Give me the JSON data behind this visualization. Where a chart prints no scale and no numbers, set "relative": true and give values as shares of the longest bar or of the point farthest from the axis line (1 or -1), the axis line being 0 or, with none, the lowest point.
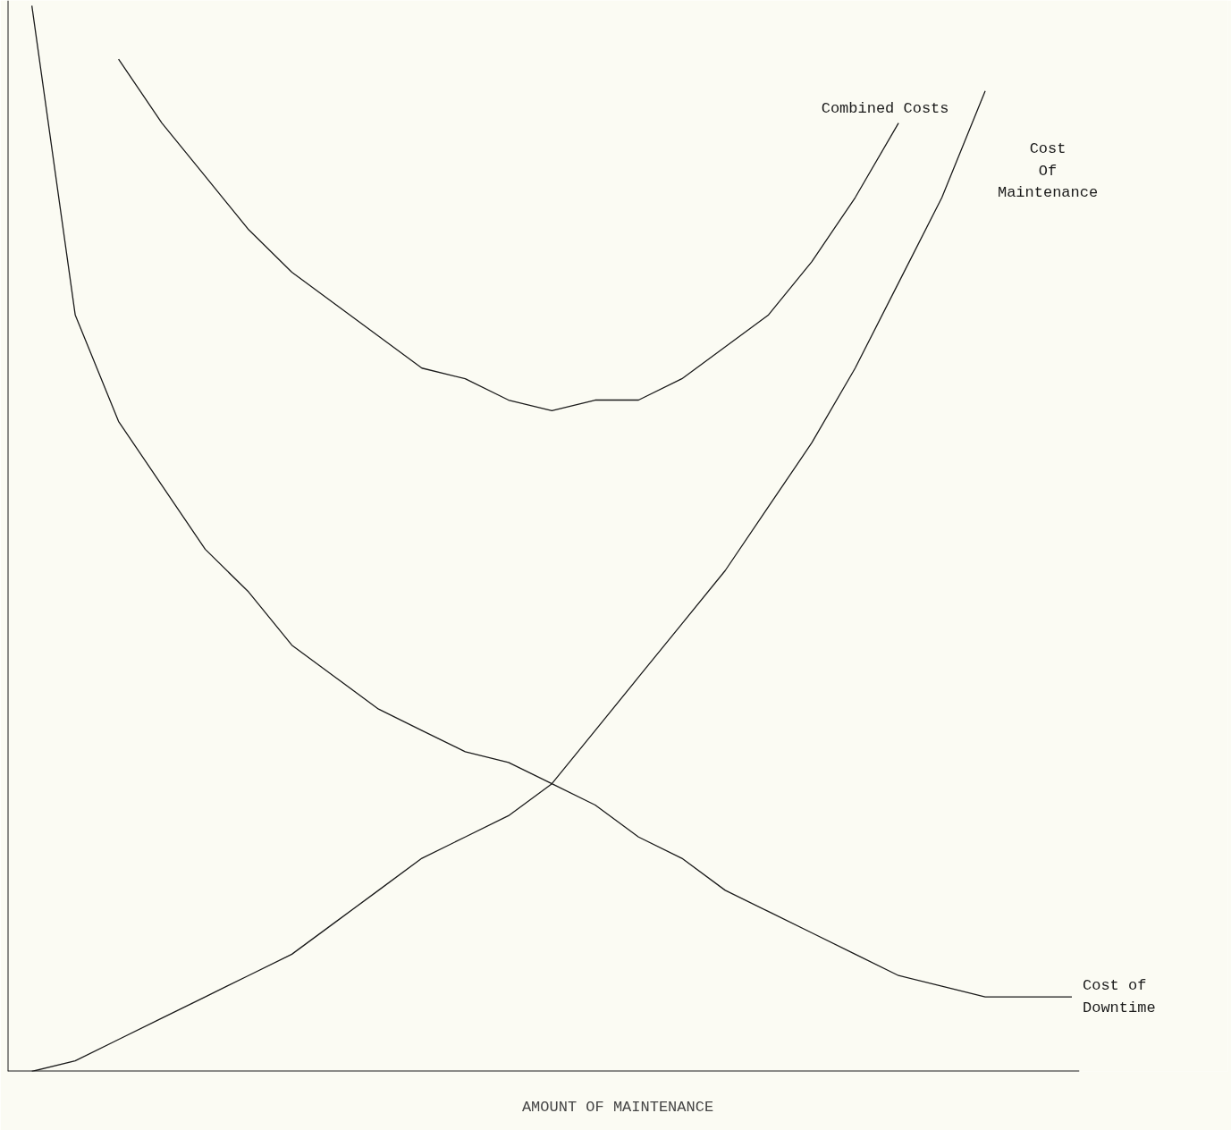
{
  "chart_data": {
    "type": "line",
    "relative": true,
    "xlabel": "AMOUNT OF MAINTENANCE",
    "categories": [
      null,
      null,
      null,
      null,
      null,
      null,
      null,
      null,
      null,
      null,
      null,
      null,
      null,
      null,
      null,
      null,
      null,
      null,
      null,
      null,
      null,
      null,
      null,
      null,
      null
    ],
    "series": [
      {
        "name": "Combined Costs",
        "color": "#1a1a1a",
        "values": [
          null,
          null,
          0.95,
          0.89,
          0.84,
          0.79,
          0.75,
          0.72,
          0.69,
          0.66,
          0.65,
          0.63,
          0.62,
          0.63,
          0.63,
          0.65,
          0.68,
          0.71,
          0.76,
          0.82,
          0.89,
          null,
          null,
          null,
          null
        ]
      },
      {
        "name": "Cost\nOf\nMaintenance",
        "color": "#1a1a1a",
        "values": [
          0.0,
          0.01,
          0.03,
          0.05,
          0.07,
          0.09,
          0.11,
          0.14,
          0.17,
          0.2,
          0.22,
          0.24,
          0.27,
          0.32,
          0.37,
          0.42,
          0.47,
          0.53,
          0.59,
          0.66,
          0.74,
          0.82,
          0.92,
          null,
          null
        ]
      },
      {
        "name": "Cost of\nDowntime",
        "color": "#1a1a1a",
        "values": [
          1.0,
          0.71,
          0.61,
          0.55,
          0.49,
          0.45,
          0.4,
          0.37,
          0.34,
          0.32,
          0.3,
          0.29,
          0.27,
          0.25,
          0.22,
          0.2,
          0.17,
          0.15,
          0.13,
          0.11,
          0.09,
          0.08,
          0.07,
          0.07,
          0.07
        ]
      }
    ],
    "grid": false,
    "legend": false,
    "marker": "none",
    "line_style": "solid"
  }
}
